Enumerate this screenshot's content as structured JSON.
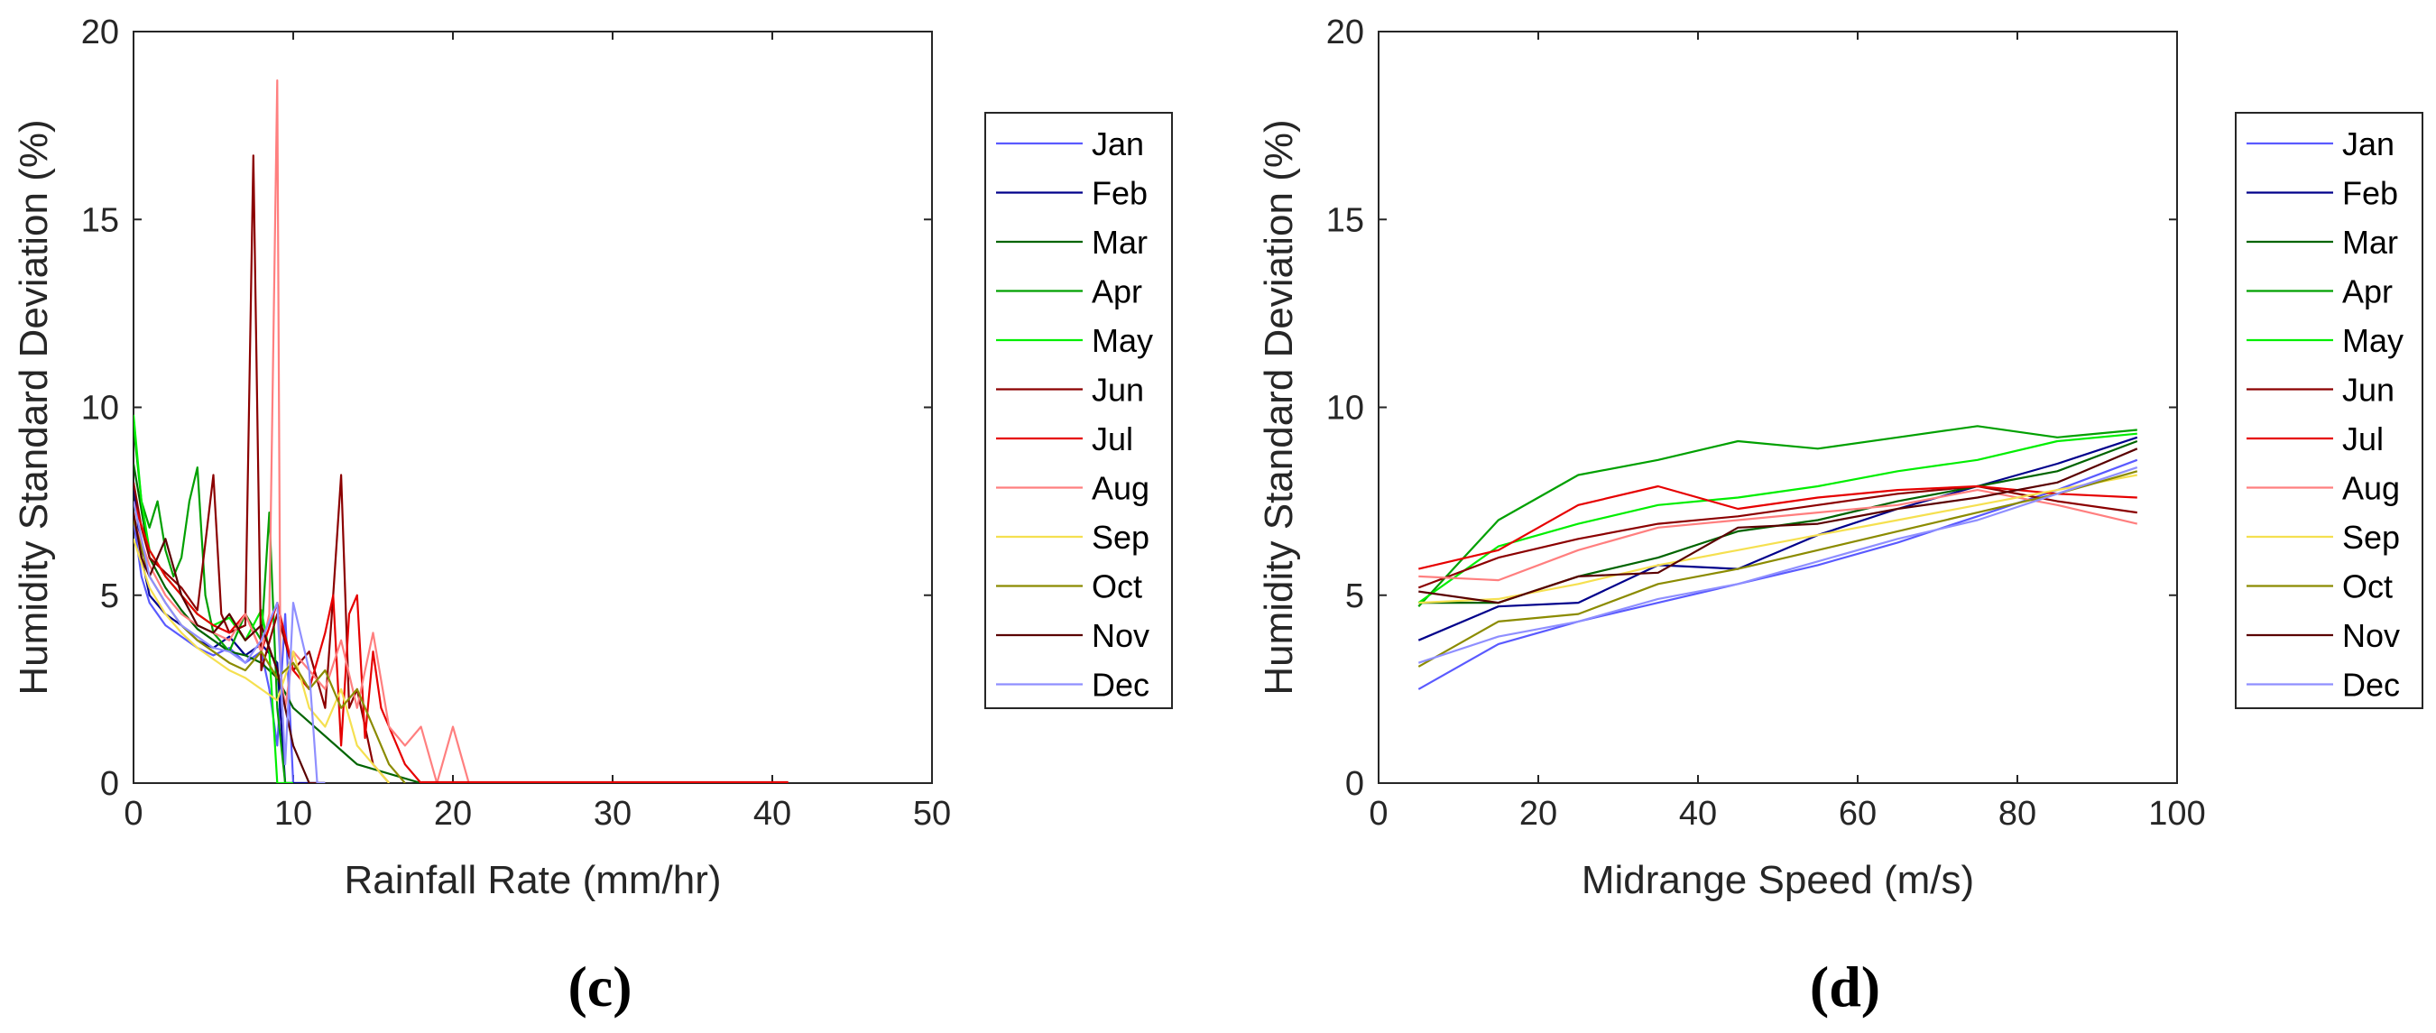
{
  "panel_labels": [
    "(c)",
    "(d)"
  ],
  "colors": {
    "Jan": "#5a5aff",
    "Feb": "#00008b",
    "Mar": "#006400",
    "Apr": "#00a000",
    "May": "#00ee00",
    "Jun": "#8b0000",
    "Jul": "#e60000",
    "Aug": "#ff7f7f",
    "Sep": "#f5e050",
    "Oct": "#8b8b00",
    "Nov": "#5a0000",
    "Dec": "#8f8fff"
  },
  "chart_data": [
    {
      "type": "line",
      "panel": "(c)",
      "xlabel": "Rainfall Rate (mm/hr)",
      "ylabel": "Humidity Standard Deviation (%)",
      "xlim": [
        0,
        50
      ],
      "ylim": [
        0,
        20
      ],
      "xticks": [
        "0",
        "10",
        "20",
        "30",
        "40",
        "50"
      ],
      "yticks": [
        "0",
        "5",
        "10",
        "15",
        "20"
      ],
      "legend": [
        "Jan",
        "Feb",
        "Mar",
        "Apr",
        "May",
        "Jun",
        "Jul",
        "Aug",
        "Sep",
        "Oct",
        "Nov",
        "Dec"
      ],
      "series": [
        {
          "name": "Jan",
          "x": [
            0,
            0.5,
            1,
            2,
            3,
            4,
            5,
            6,
            7,
            8,
            8.5,
            9,
            9.5,
            10,
            11,
            12
          ],
          "y": [
            7,
            5.5,
            4.8,
            4.2,
            3.9,
            3.6,
            3.4,
            3.6,
            3.2,
            3.5,
            2.5,
            1.0,
            4.5,
            0,
            0,
            0
          ]
        },
        {
          "name": "Feb",
          "x": [
            0,
            0.5,
            1,
            2,
            3,
            4,
            5,
            6,
            7,
            8,
            9,
            9.5,
            10,
            12
          ],
          "y": [
            8,
            6,
            5,
            4.5,
            4.2,
            3.8,
            3.6,
            3.9,
            3.4,
            3.7,
            3.2,
            0,
            0,
            0
          ]
        },
        {
          "name": "Mar",
          "x": [
            0,
            1,
            2,
            3,
            4,
            5,
            6,
            7,
            8,
            9,
            10,
            14,
            18
          ],
          "y": [
            8.5,
            6,
            5.2,
            4.6,
            4.1,
            3.8,
            3.5,
            3.4,
            3.2,
            2.8,
            2.0,
            0.5,
            0
          ]
        },
        {
          "name": "Apr",
          "x": [
            0,
            0.5,
            1,
            1.5,
            2,
            2.5,
            3,
            3.5,
            4,
            4.5,
            5,
            6,
            7,
            8,
            8.5,
            9,
            9.5,
            10
          ],
          "y": [
            9.5,
            7.5,
            6.8,
            7.5,
            6.2,
            5.5,
            6.0,
            7.5,
            8.4,
            5.0,
            4.0,
            3.5,
            4.5,
            3.8,
            7.2,
            2.0,
            0,
            0
          ]
        },
        {
          "name": "May",
          "x": [
            0,
            0.5,
            1,
            2,
            3,
            4,
            5,
            6,
            7,
            8,
            8.5,
            9,
            10
          ],
          "y": [
            9.8,
            7.5,
            6.2,
            5.5,
            5.0,
            4.5,
            4.2,
            4.4,
            3.8,
            4.6,
            3.5,
            0,
            0
          ]
        },
        {
          "name": "Jun",
          "x": [
            0,
            0.5,
            1,
            2,
            3,
            4,
            5,
            5.5,
            6,
            7,
            7.5,
            8,
            9,
            10,
            11,
            12,
            12.5,
            13,
            13.5,
            14,
            15,
            16
          ],
          "y": [
            8,
            6.8,
            6.0,
            5.6,
            5.2,
            4.6,
            8.2,
            4.5,
            4.0,
            4.2,
            16.7,
            3.0,
            4.5,
            3.0,
            3.5,
            2.0,
            5.0,
            8.2,
            2.0,
            2.5,
            0.5,
            0
          ]
        },
        {
          "name": "Jul",
          "x": [
            0,
            1,
            2,
            3,
            4,
            5,
            6,
            7,
            8,
            9,
            10,
            11,
            12,
            12.5,
            13,
            13.5,
            14,
            14.5,
            15,
            15.5,
            16,
            17,
            18
          ],
          "y": [
            7.5,
            6.2,
            5.5,
            5.0,
            4.5,
            4.2,
            4.0,
            4.5,
            3.5,
            4.8,
            3.0,
            2.5,
            4.0,
            5.0,
            1.0,
            4.5,
            5.0,
            1.2,
            3.5,
            2.0,
            1.5,
            0.5,
            0
          ]
        },
        {
          "name": "Aug",
          "x": [
            0,
            1,
            2,
            3,
            4,
            5,
            6,
            7,
            8,
            8.5,
            9,
            9.2,
            9.5,
            10,
            11,
            12,
            13,
            14,
            15,
            16,
            17,
            18,
            19,
            20,
            21,
            22
          ],
          "y": [
            7,
            5.8,
            5.0,
            4.5,
            4.2,
            4.0,
            3.8,
            4.5,
            3.5,
            4.5,
            18.7,
            3.0,
            2.0,
            3.5,
            3.0,
            2.5,
            3.8,
            2.0,
            4.0,
            1.5,
            1.0,
            1.5,
            0,
            1.5,
            0,
            0
          ]
        },
        {
          "name": "Sep",
          "x": [
            0,
            1,
            2,
            3,
            4,
            5,
            6,
            7,
            8,
            9,
            10,
            11,
            12,
            13,
            14,
            15,
            16
          ],
          "y": [
            6.5,
            5.2,
            4.5,
            4.0,
            3.6,
            3.3,
            3.0,
            2.8,
            2.5,
            2.2,
            3.5,
            2.0,
            1.5,
            2.5,
            1.0,
            0.5,
            0
          ]
        },
        {
          "name": "Oct",
          "x": [
            0,
            1,
            2,
            3,
            4,
            5,
            6,
            7,
            8,
            9,
            10,
            11,
            12,
            13,
            14,
            15,
            16,
            17
          ],
          "y": [
            7,
            5.5,
            4.8,
            4.2,
            3.8,
            3.5,
            3.2,
            3.0,
            3.5,
            2.8,
            3.2,
            2.5,
            3.0,
            2.0,
            2.5,
            1.5,
            0.5,
            0
          ]
        },
        {
          "name": "Nov",
          "x": [
            0,
            0.5,
            1,
            2,
            3,
            4,
            5,
            6,
            7,
            8,
            9,
            10,
            11,
            12
          ],
          "y": [
            7.2,
            6.0,
            5.5,
            6.5,
            5.0,
            4.2,
            4.0,
            4.5,
            3.8,
            4.2,
            3.0,
            1.0,
            0,
            0
          ]
        },
        {
          "name": "Dec",
          "x": [
            0,
            1,
            2,
            3,
            4,
            5,
            6,
            7,
            8,
            9,
            9.5,
            10,
            11,
            11.5,
            12
          ],
          "y": [
            7.5,
            5.5,
            4.8,
            4.2,
            3.9,
            3.6,
            3.5,
            3.2,
            3.8,
            4.8,
            0.5,
            4.8,
            3.0,
            0,
            0
          ]
        }
      ],
      "flat_zero_line": {
        "x": [
          18,
          41
        ],
        "y": [
          0,
          0
        ],
        "color": "#e60000"
      }
    },
    {
      "type": "line",
      "panel": "(d)",
      "xlabel": "Midrange Speed (m/s)",
      "ylabel": "Humidity Standard Deviation (%)",
      "xlim": [
        0,
        100
      ],
      "ylim": [
        0,
        20
      ],
      "xticks": [
        "0",
        "20",
        "40",
        "60",
        "80",
        "100"
      ],
      "yticks": [
        "0",
        "5",
        "10",
        "15",
        "20"
      ],
      "legend": [
        "Jan",
        "Feb",
        "Mar",
        "Apr",
        "May",
        "Jun",
        "Jul",
        "Aug",
        "Sep",
        "Oct",
        "Nov",
        "Dec"
      ],
      "x": [
        5,
        15,
        25,
        35,
        45,
        55,
        65,
        75,
        85,
        95
      ],
      "series": [
        {
          "name": "Jan",
          "values": [
            2.5,
            3.7,
            4.3,
            4.8,
            5.3,
            5.8,
            6.4,
            7.1,
            7.8,
            8.6
          ]
        },
        {
          "name": "Feb",
          "values": [
            3.8,
            4.7,
            4.8,
            5.8,
            5.7,
            6.6,
            7.3,
            7.9,
            8.5,
            9.2
          ]
        },
        {
          "name": "Mar",
          "values": [
            4.8,
            4.8,
            5.5,
            6.0,
            6.7,
            7.0,
            7.5,
            7.9,
            8.3,
            9.1
          ]
        },
        {
          "name": "Apr",
          "values": [
            4.7,
            7.0,
            8.2,
            8.6,
            9.1,
            8.9,
            9.2,
            9.5,
            9.2,
            9.4
          ]
        },
        {
          "name": "May",
          "values": [
            4.8,
            6.3,
            6.9,
            7.4,
            7.6,
            7.9,
            8.3,
            8.6,
            9.1,
            9.3
          ]
        },
        {
          "name": "Jun",
          "values": [
            5.2,
            6.0,
            6.5,
            6.9,
            7.1,
            7.4,
            7.7,
            7.9,
            7.5,
            7.2
          ]
        },
        {
          "name": "Jul",
          "values": [
            5.7,
            6.2,
            7.4,
            7.9,
            7.3,
            7.6,
            7.8,
            7.9,
            7.7,
            7.6
          ]
        },
        {
          "name": "Aug",
          "values": [
            5.5,
            5.4,
            6.2,
            6.8,
            7.0,
            7.2,
            7.4,
            7.8,
            7.4,
            6.9
          ]
        },
        {
          "name": "Sep",
          "values": [
            4.8,
            4.9,
            5.3,
            5.8,
            6.2,
            6.6,
            7.0,
            7.4,
            7.8,
            8.2
          ]
        },
        {
          "name": "Oct",
          "values": [
            3.1,
            4.3,
            4.5,
            5.3,
            5.7,
            6.2,
            6.7,
            7.2,
            7.7,
            8.3
          ]
        },
        {
          "name": "Nov",
          "values": [
            5.1,
            4.8,
            5.5,
            5.6,
            6.8,
            6.9,
            7.3,
            7.6,
            8.0,
            8.9
          ]
        },
        {
          "name": "Dec",
          "values": [
            3.2,
            3.9,
            4.3,
            4.9,
            5.3,
            5.9,
            6.5,
            7.0,
            7.7,
            8.4
          ]
        }
      ]
    }
  ]
}
